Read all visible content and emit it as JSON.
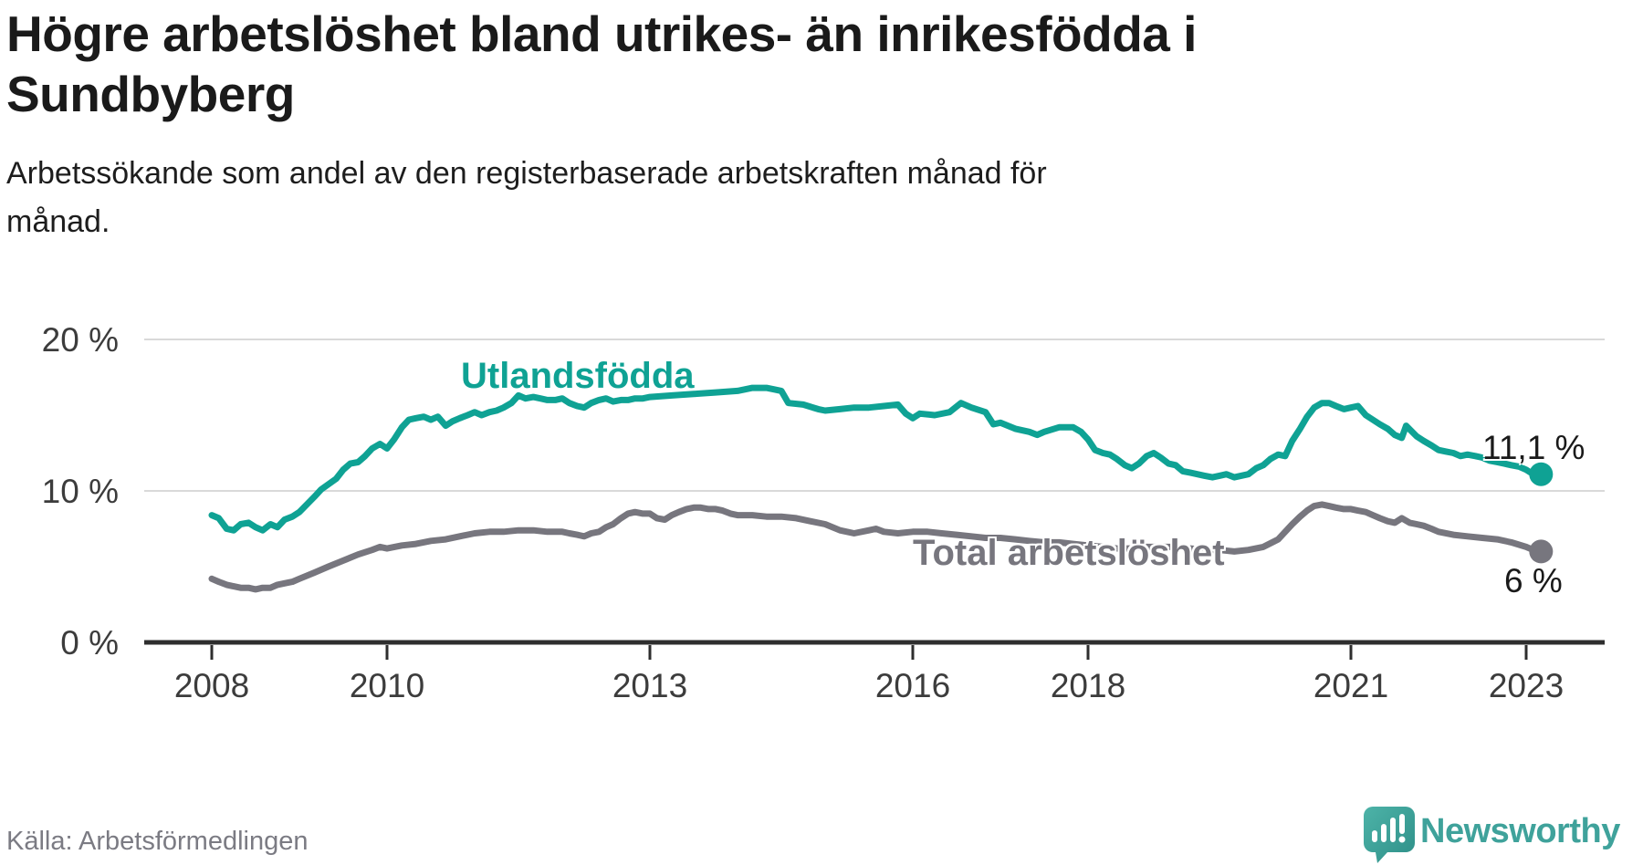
{
  "header": {
    "title": "Högre arbetslöshet bland utrikes- än inrikesfödda i\nSundbyberg",
    "subtitle": "Arbetssökande som andel av den registerbaserade arbetskraften månad för\nmånad."
  },
  "footer": {
    "source": "Källa: Arbetsförmedlingen",
    "brand": "Newsworthy"
  },
  "chart_data": {
    "type": "line",
    "title": "Högre arbetslöshet bland utrikes- än inrikesfödda i Sundbyberg",
    "xlabel": "",
    "ylabel": "",
    "unit": "%",
    "ylim": [
      0,
      20
    ],
    "xlim": [
      2007.6,
      2023.6
    ],
    "grid": "horizontal",
    "legend_position": "inline-labels",
    "colors": {
      "grid": "#d9d9d9",
      "axis": "#2e2e2e",
      "tick_text": "#3c3c3c",
      "end_label_text": "#1a1a1a"
    },
    "x_axis": {
      "ticks": [
        2008,
        2010,
        2013,
        2016,
        2018,
        2021,
        2023
      ]
    },
    "y_axis": {
      "ticks": [
        {
          "value": 0,
          "label": "0 %"
        },
        {
          "value": 10,
          "label": "10 %"
        },
        {
          "value": 20,
          "label": "20 %"
        }
      ]
    },
    "series": [
      {
        "name": "Utlandsfödda",
        "color": "#0fa294",
        "end_label": "11,1 %",
        "end_value": 11.1,
        "points": [
          [
            2008.0,
            8.4
          ],
          [
            2008.08,
            8.2
          ],
          [
            2008.17,
            7.5
          ],
          [
            2008.25,
            7.4
          ],
          [
            2008.33,
            7.8
          ],
          [
            2008.42,
            7.9
          ],
          [
            2008.5,
            7.6
          ],
          [
            2008.58,
            7.4
          ],
          [
            2008.67,
            7.8
          ],
          [
            2008.75,
            7.6
          ],
          [
            2008.83,
            8.1
          ],
          [
            2008.92,
            8.3
          ],
          [
            2009.0,
            8.6
          ],
          [
            2009.17,
            9.6
          ],
          [
            2009.25,
            10.1
          ],
          [
            2009.42,
            10.8
          ],
          [
            2009.5,
            11.4
          ],
          [
            2009.58,
            11.8
          ],
          [
            2009.67,
            11.9
          ],
          [
            2009.75,
            12.3
          ],
          [
            2009.83,
            12.8
          ],
          [
            2009.92,
            13.1
          ],
          [
            2010.0,
            12.8
          ],
          [
            2010.08,
            13.4
          ],
          [
            2010.17,
            14.2
          ],
          [
            2010.25,
            14.7
          ],
          [
            2010.33,
            14.8
          ],
          [
            2010.42,
            14.9
          ],
          [
            2010.5,
            14.7
          ],
          [
            2010.58,
            14.9
          ],
          [
            2010.67,
            14.3
          ],
          [
            2010.75,
            14.6
          ],
          [
            2010.83,
            14.8
          ],
          [
            2010.92,
            15.0
          ],
          [
            2011.0,
            15.2
          ],
          [
            2011.08,
            15.0
          ],
          [
            2011.17,
            15.2
          ],
          [
            2011.25,
            15.3
          ],
          [
            2011.33,
            15.5
          ],
          [
            2011.42,
            15.8
          ],
          [
            2011.5,
            16.3
          ],
          [
            2011.58,
            16.1
          ],
          [
            2011.67,
            16.2
          ],
          [
            2011.75,
            16.1
          ],
          [
            2011.83,
            16.0
          ],
          [
            2011.92,
            16.0
          ],
          [
            2012.0,
            16.1
          ],
          [
            2012.08,
            15.8
          ],
          [
            2012.17,
            15.6
          ],
          [
            2012.25,
            15.5
          ],
          [
            2012.33,
            15.8
          ],
          [
            2012.42,
            16.0
          ],
          [
            2012.5,
            16.1
          ],
          [
            2012.58,
            15.9
          ],
          [
            2012.67,
            16.0
          ],
          [
            2012.75,
            16.0
          ],
          [
            2012.83,
            16.1
          ],
          [
            2012.92,
            16.1
          ],
          [
            2013.0,
            16.2
          ],
          [
            2013.25,
            16.3
          ],
          [
            2013.5,
            16.4
          ],
          [
            2013.75,
            16.5
          ],
          [
            2014.0,
            16.6
          ],
          [
            2014.17,
            16.8
          ],
          [
            2014.33,
            16.8
          ],
          [
            2014.42,
            16.7
          ],
          [
            2014.5,
            16.6
          ],
          [
            2014.58,
            15.8
          ],
          [
            2014.75,
            15.7
          ],
          [
            2014.92,
            15.4
          ],
          [
            2015.0,
            15.3
          ],
          [
            2015.17,
            15.4
          ],
          [
            2015.33,
            15.5
          ],
          [
            2015.5,
            15.5
          ],
          [
            2015.67,
            15.6
          ],
          [
            2015.83,
            15.7
          ],
          [
            2015.92,
            15.1
          ],
          [
            2016.0,
            14.8
          ],
          [
            2016.08,
            15.1
          ],
          [
            2016.25,
            15.0
          ],
          [
            2016.42,
            15.2
          ],
          [
            2016.55,
            15.8
          ],
          [
            2016.67,
            15.5
          ],
          [
            2016.83,
            15.2
          ],
          [
            2016.92,
            14.4
          ],
          [
            2017.0,
            14.5
          ],
          [
            2017.17,
            14.1
          ],
          [
            2017.33,
            13.9
          ],
          [
            2017.42,
            13.7
          ],
          [
            2017.5,
            13.9
          ],
          [
            2017.67,
            14.2
          ],
          [
            2017.83,
            14.2
          ],
          [
            2017.92,
            13.9
          ],
          [
            2018.0,
            13.4
          ],
          [
            2018.08,
            12.7
          ],
          [
            2018.17,
            12.5
          ],
          [
            2018.25,
            12.4
          ],
          [
            2018.33,
            12.1
          ],
          [
            2018.42,
            11.7
          ],
          [
            2018.5,
            11.5
          ],
          [
            2018.58,
            11.8
          ],
          [
            2018.67,
            12.3
          ],
          [
            2018.75,
            12.5
          ],
          [
            2018.83,
            12.2
          ],
          [
            2018.92,
            11.8
          ],
          [
            2019.0,
            11.7
          ],
          [
            2019.08,
            11.3
          ],
          [
            2019.17,
            11.2
          ],
          [
            2019.33,
            11.0
          ],
          [
            2019.42,
            10.9
          ],
          [
            2019.5,
            11.0
          ],
          [
            2019.58,
            11.1
          ],
          [
            2019.67,
            10.9
          ],
          [
            2019.83,
            11.1
          ],
          [
            2019.92,
            11.5
          ],
          [
            2020.0,
            11.7
          ],
          [
            2020.08,
            12.1
          ],
          [
            2020.17,
            12.4
          ],
          [
            2020.25,
            12.3
          ],
          [
            2020.33,
            13.3
          ],
          [
            2020.42,
            14.1
          ],
          [
            2020.5,
            14.9
          ],
          [
            2020.58,
            15.5
          ],
          [
            2020.67,
            15.8
          ],
          [
            2020.75,
            15.8
          ],
          [
            2020.83,
            15.6
          ],
          [
            2020.92,
            15.4
          ],
          [
            2021.0,
            15.5
          ],
          [
            2021.08,
            15.6
          ],
          [
            2021.17,
            15.0
          ],
          [
            2021.25,
            14.7
          ],
          [
            2021.33,
            14.4
          ],
          [
            2021.42,
            14.1
          ],
          [
            2021.5,
            13.7
          ],
          [
            2021.58,
            13.5
          ],
          [
            2021.63,
            14.3
          ],
          [
            2021.75,
            13.6
          ],
          [
            2021.83,
            13.3
          ],
          [
            2021.92,
            13.0
          ],
          [
            2022.0,
            12.7
          ],
          [
            2022.08,
            12.6
          ],
          [
            2022.17,
            12.5
          ],
          [
            2022.25,
            12.3
          ],
          [
            2022.33,
            12.4
          ],
          [
            2022.42,
            12.3
          ],
          [
            2022.5,
            12.2
          ],
          [
            2022.58,
            12.0
          ],
          [
            2022.67,
            11.9
          ],
          [
            2022.75,
            11.8
          ],
          [
            2022.83,
            11.7
          ],
          [
            2022.92,
            11.6
          ],
          [
            2023.0,
            11.4
          ],
          [
            2023.08,
            11.1
          ],
          [
            2023.17,
            11.1
          ]
        ]
      },
      {
        "name": "Total arbetslöshet",
        "color": "#77767e",
        "end_label": "6 %",
        "end_value": 6.0,
        "points": [
          [
            2008.0,
            4.2
          ],
          [
            2008.08,
            4.0
          ],
          [
            2008.17,
            3.8
          ],
          [
            2008.25,
            3.7
          ],
          [
            2008.33,
            3.6
          ],
          [
            2008.42,
            3.6
          ],
          [
            2008.5,
            3.5
          ],
          [
            2008.58,
            3.6
          ],
          [
            2008.67,
            3.6
          ],
          [
            2008.75,
            3.8
          ],
          [
            2008.83,
            3.9
          ],
          [
            2008.92,
            4.0
          ],
          [
            2009.0,
            4.2
          ],
          [
            2009.17,
            4.6
          ],
          [
            2009.33,
            5.0
          ],
          [
            2009.5,
            5.4
          ],
          [
            2009.67,
            5.8
          ],
          [
            2009.83,
            6.1
          ],
          [
            2009.92,
            6.3
          ],
          [
            2010.0,
            6.2
          ],
          [
            2010.17,
            6.4
          ],
          [
            2010.33,
            6.5
          ],
          [
            2010.5,
            6.7
          ],
          [
            2010.67,
            6.8
          ],
          [
            2010.83,
            7.0
          ],
          [
            2011.0,
            7.2
          ],
          [
            2011.17,
            7.3
          ],
          [
            2011.33,
            7.3
          ],
          [
            2011.5,
            7.4
          ],
          [
            2011.67,
            7.4
          ],
          [
            2011.83,
            7.3
          ],
          [
            2012.0,
            7.3
          ],
          [
            2012.08,
            7.2
          ],
          [
            2012.17,
            7.1
          ],
          [
            2012.25,
            7.0
          ],
          [
            2012.33,
            7.2
          ],
          [
            2012.42,
            7.3
          ],
          [
            2012.5,
            7.6
          ],
          [
            2012.58,
            7.8
          ],
          [
            2012.67,
            8.2
          ],
          [
            2012.75,
            8.5
          ],
          [
            2012.83,
            8.6
          ],
          [
            2012.92,
            8.5
          ],
          [
            2013.0,
            8.5
          ],
          [
            2013.08,
            8.2
          ],
          [
            2013.17,
            8.1
          ],
          [
            2013.25,
            8.4
          ],
          [
            2013.33,
            8.6
          ],
          [
            2013.42,
            8.8
          ],
          [
            2013.5,
            8.9
          ],
          [
            2013.58,
            8.9
          ],
          [
            2013.67,
            8.8
          ],
          [
            2013.75,
            8.8
          ],
          [
            2013.83,
            8.7
          ],
          [
            2013.92,
            8.5
          ],
          [
            2014.0,
            8.4
          ],
          [
            2014.17,
            8.4
          ],
          [
            2014.33,
            8.3
          ],
          [
            2014.5,
            8.3
          ],
          [
            2014.67,
            8.2
          ],
          [
            2014.83,
            8.0
          ],
          [
            2015.0,
            7.8
          ],
          [
            2015.17,
            7.4
          ],
          [
            2015.33,
            7.2
          ],
          [
            2015.5,
            7.4
          ],
          [
            2015.58,
            7.5
          ],
          [
            2015.67,
            7.3
          ],
          [
            2015.83,
            7.2
          ],
          [
            2016.0,
            7.3
          ],
          [
            2016.17,
            7.3
          ],
          [
            2016.33,
            7.2
          ],
          [
            2016.5,
            7.1
          ],
          [
            2016.67,
            7.0
          ],
          [
            2016.83,
            6.9
          ],
          [
            2017.0,
            6.9
          ],
          [
            2017.17,
            6.8
          ],
          [
            2017.33,
            6.7
          ],
          [
            2017.5,
            6.6
          ],
          [
            2017.67,
            6.6
          ],
          [
            2017.83,
            6.5
          ],
          [
            2018.0,
            6.4
          ],
          [
            2018.17,
            6.3
          ],
          [
            2018.33,
            6.2
          ],
          [
            2018.5,
            6.2
          ],
          [
            2018.67,
            6.3
          ],
          [
            2018.83,
            6.3
          ],
          [
            2019.0,
            6.3
          ],
          [
            2019.17,
            6.2
          ],
          [
            2019.33,
            6.1
          ],
          [
            2019.5,
            6.1
          ],
          [
            2019.67,
            6.0
          ],
          [
            2019.83,
            6.1
          ],
          [
            2020.0,
            6.3
          ],
          [
            2020.17,
            6.8
          ],
          [
            2020.33,
            7.8
          ],
          [
            2020.42,
            8.3
          ],
          [
            2020.5,
            8.7
          ],
          [
            2020.58,
            9.0
          ],
          [
            2020.67,
            9.1
          ],
          [
            2020.75,
            9.0
          ],
          [
            2020.83,
            8.9
          ],
          [
            2020.92,
            8.8
          ],
          [
            2021.0,
            8.8
          ],
          [
            2021.08,
            8.7
          ],
          [
            2021.17,
            8.6
          ],
          [
            2021.25,
            8.4
          ],
          [
            2021.33,
            8.2
          ],
          [
            2021.42,
            8.0
          ],
          [
            2021.5,
            7.9
          ],
          [
            2021.58,
            8.2
          ],
          [
            2021.67,
            7.9
          ],
          [
            2021.75,
            7.8
          ],
          [
            2021.83,
            7.7
          ],
          [
            2021.92,
            7.5
          ],
          [
            2022.0,
            7.3
          ],
          [
            2022.17,
            7.1
          ],
          [
            2022.33,
            7.0
          ],
          [
            2022.5,
            6.9
          ],
          [
            2022.67,
            6.8
          ],
          [
            2022.83,
            6.6
          ],
          [
            2023.0,
            6.3
          ],
          [
            2023.08,
            6.1
          ],
          [
            2023.17,
            6.0
          ]
        ]
      }
    ]
  }
}
